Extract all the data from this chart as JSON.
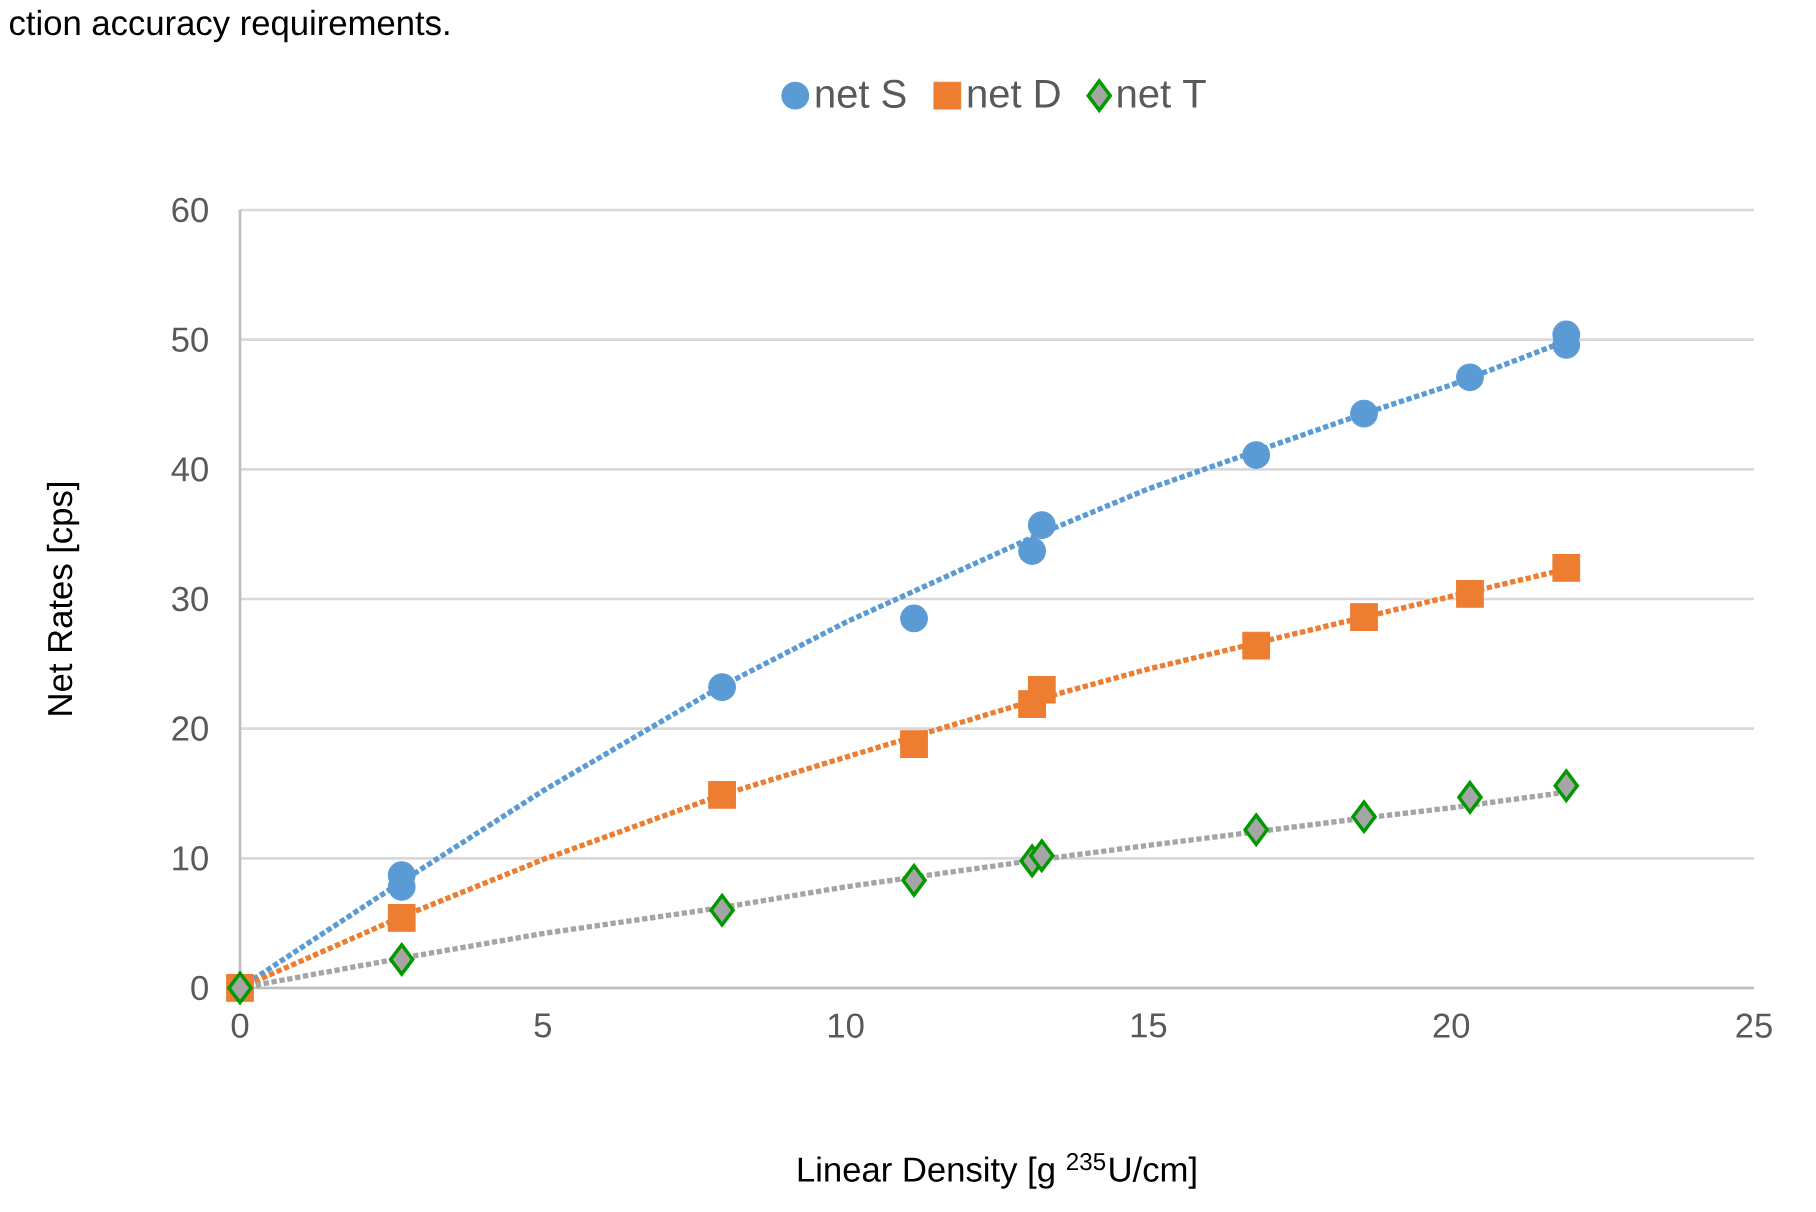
{
  "chart_data": {
    "type": "scatter",
    "xlabel": "Linear Density [g $^{235}$U/cm]",
    "ylabel": "Net Rates [cps]",
    "annotations": [
      "ction accuracy requirements."
    ],
    "xlim": [
      0,
      25
    ],
    "xticks": [
      0,
      5,
      10,
      15,
      20,
      25
    ],
    "ylim": [
      0,
      60
    ],
    "yticks": [
      0,
      10,
      20,
      30,
      40,
      50,
      60
    ],
    "grid": "y",
    "legend": "top",
    "series": [
      {
        "name": "net S",
        "marker": "circle",
        "color": "#5b9bd5",
        "x": [
          2.67,
          2.67,
          7.96,
          11.13,
          13.08,
          13.24,
          16.78,
          18.56,
          20.31,
          21.9,
          21.9
        ],
        "values": [
          8.7,
          7.8,
          23.2,
          28.5,
          33.7,
          35.7,
          41.1,
          44.3,
          47.1,
          50.4,
          49.6
        ]
      },
      {
        "name": "net D",
        "marker": "square",
        "color": "#ed7d31",
        "x": [
          0,
          2.67,
          7.96,
          11.13,
          13.08,
          13.24,
          16.78,
          18.56,
          20.31,
          21.9
        ],
        "values": [
          0,
          5.4,
          14.9,
          18.8,
          21.9,
          23.0,
          26.4,
          28.6,
          30.4,
          32.4
        ]
      },
      {
        "name": "net T",
        "marker": "diamond",
        "color": "#a5a5a5",
        "x": [
          0,
          2.67,
          7.96,
          11.13,
          13.08,
          13.24,
          16.78,
          18.56,
          20.31,
          21.9
        ],
        "values": [
          0,
          2.2,
          6.0,
          8.3,
          9.8,
          10.2,
          12.2,
          13.2,
          14.7,
          15.6
        ]
      },
      {
        "type": "line",
        "line_style": "dotted",
        "marker": "none",
        "color": "#5b9bd5",
        "x": [
          0,
          2.67,
          5,
          7.96,
          10,
          13.2,
          15,
          18.56,
          20,
          21.9
        ],
        "values": [
          0,
          8.2,
          15.2,
          23.3,
          28.2,
          35.0,
          38.5,
          44.3,
          46.5,
          49.9
        ]
      },
      {
        "type": "line",
        "line_style": "dotted",
        "marker": "none",
        "color": "#ed7d31",
        "x": [
          0,
          2.67,
          5,
          7.96,
          10,
          13.2,
          15,
          18.56,
          20,
          21.9
        ],
        "values": [
          0,
          5.5,
          9.9,
          14.9,
          17.8,
          22.3,
          24.6,
          28.6,
          30.2,
          32.3
        ]
      },
      {
        "type": "line",
        "line_style": "dotted",
        "marker": "none",
        "color": "#a5a5a5",
        "x": [
          0,
          2.67,
          5,
          7.96,
          10,
          13.2,
          15,
          18.56,
          20,
          21.9
        ],
        "values": [
          0,
          2.3,
          4.2,
          6.2,
          7.8,
          9.9,
          11.0,
          13.1,
          13.9,
          15.1
        ]
      }
    ]
  }
}
